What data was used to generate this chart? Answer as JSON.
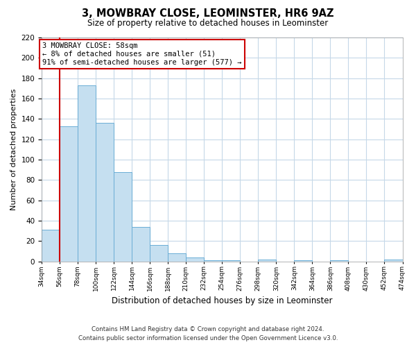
{
  "title": "3, MOWBRAY CLOSE, LEOMINSTER, HR6 9AZ",
  "subtitle": "Size of property relative to detached houses in Leominster",
  "xlabel": "Distribution of detached houses by size in Leominster",
  "ylabel": "Number of detached properties",
  "bin_labels": [
    "34sqm",
    "56sqm",
    "78sqm",
    "100sqm",
    "122sqm",
    "144sqm",
    "166sqm",
    "188sqm",
    "210sqm",
    "232sqm",
    "254sqm",
    "276sqm",
    "298sqm",
    "320sqm",
    "342sqm",
    "364sqm",
    "386sqm",
    "408sqm",
    "430sqm",
    "452sqm",
    "474sqm"
  ],
  "bar_values": [
    31,
    133,
    173,
    136,
    88,
    34,
    16,
    8,
    4,
    1,
    1,
    0,
    2,
    0,
    1,
    0,
    1,
    0,
    0,
    2
  ],
  "bar_color": "#c5dff0",
  "bar_edge_color": "#6aadd5",
  "vline_x_index": 1,
  "vline_color": "#cc0000",
  "ylim": [
    0,
    220
  ],
  "yticks": [
    0,
    20,
    40,
    60,
    80,
    100,
    120,
    140,
    160,
    180,
    200,
    220
  ],
  "annotation_title": "3 MOWBRAY CLOSE: 58sqm",
  "annotation_line1": "← 8% of detached houses are smaller (51)",
  "annotation_line2": "91% of semi-detached houses are larger (577) →",
  "annotation_box_color": "#ffffff",
  "annotation_box_edge": "#cc0000",
  "footer_line1": "Contains HM Land Registry data © Crown copyright and database right 2024.",
  "footer_line2": "Contains public sector information licensed under the Open Government Licence v3.0.",
  "bg_color": "#ffffff",
  "grid_color": "#c5d8e8"
}
